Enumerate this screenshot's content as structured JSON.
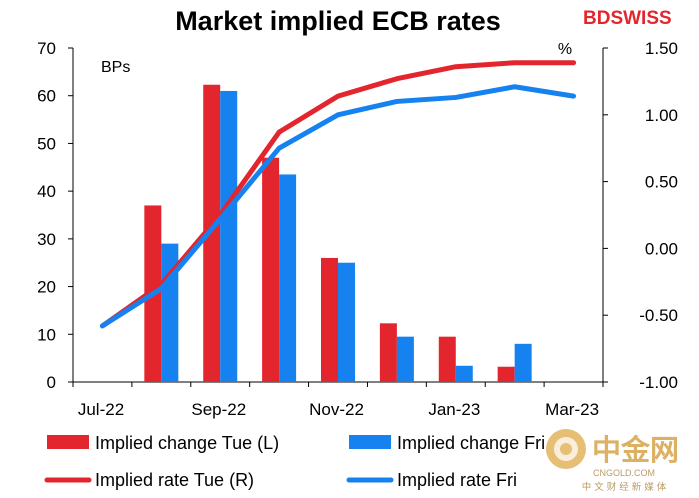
{
  "brand": {
    "name": "BDSWISS",
    "color": "#e3262d"
  },
  "watermark": {
    "name": "中金网",
    "sub_latin": "CNGOLD.COM",
    "sub_cn": "中 文 财 经 新 媒 体",
    "color": "#d7a44a"
  },
  "chart_data": {
    "type": "bar+line",
    "title": "Market implied ECB rates",
    "left_axis": {
      "unit_label": "BPs",
      "ylim": [
        0,
        70
      ],
      "ticks": [
        "0",
        "10",
        "20",
        "30",
        "40",
        "50",
        "60",
        "70"
      ]
    },
    "right_axis": {
      "unit_label": "%",
      "ylim": [
        -1.0,
        1.5
      ],
      "ticks": [
        "-1.00",
        "-0.50",
        "0.00",
        "0.50",
        "1.00",
        "1.50"
      ]
    },
    "x_ticks": [
      "Jul-22",
      "Sep-22",
      "Nov-22",
      "Jan-23",
      "Mar-23"
    ],
    "series": [
      {
        "name": "Implied change Tue (L)",
        "kind": "bar",
        "axis": "left",
        "color": "#e3262d",
        "values": [
          null,
          37,
          62.3,
          47,
          26,
          12.3,
          9.5,
          3.2,
          null
        ]
      },
      {
        "name": "Implied change Fri",
        "kind": "bar",
        "axis": "left",
        "color": "#1682f0",
        "values": [
          null,
          29,
          61,
          43.5,
          25,
          9.5,
          3.4,
          8,
          null
        ]
      },
      {
        "name": "Implied rate Tue (R)",
        "kind": "line",
        "axis": "right",
        "color": "#e3262d",
        "values": [
          -0.58,
          -0.27,
          0.25,
          0.87,
          1.14,
          1.27,
          1.36,
          1.39,
          1.39
        ]
      },
      {
        "name": "Implied rate Fri",
        "kind": "line",
        "axis": "right",
        "color": "#1682f0",
        "values": [
          -0.58,
          -0.3,
          0.22,
          0.75,
          1.0,
          1.1,
          1.13,
          1.21,
          1.14
        ]
      }
    ]
  }
}
